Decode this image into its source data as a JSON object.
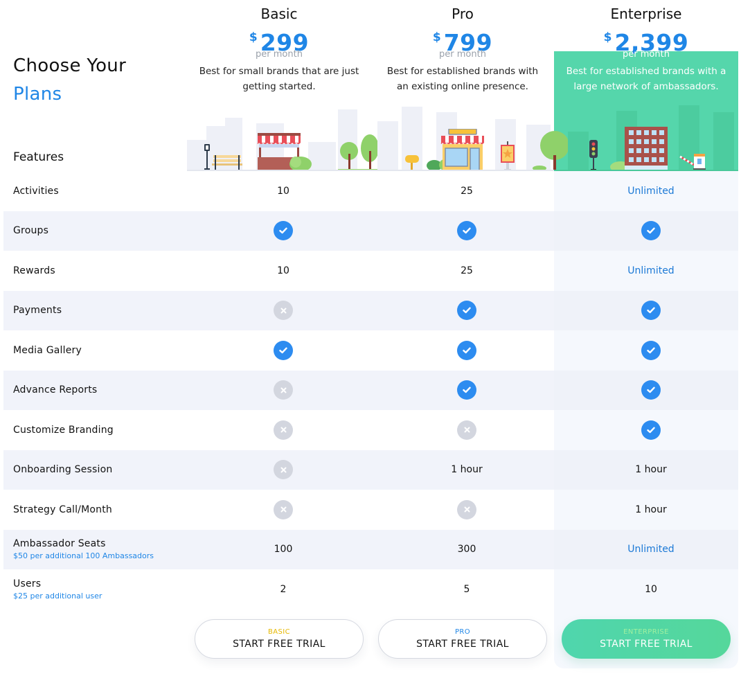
{
  "header": {
    "title_line1": "Choose Your",
    "title_line2": "Plans",
    "features_label": "Features"
  },
  "plans": [
    {
      "name": "Basic",
      "currency": "$",
      "price": "299",
      "period": "per month",
      "description": "Best for small brands that are just getting started.",
      "button_tier": "BASIC",
      "button_label": "START FREE TRIAL"
    },
    {
      "name": "Pro",
      "currency": "$",
      "price": "799",
      "period": "per month",
      "description": "Best for established brands with an existing online presence.",
      "button_tier": "PRO",
      "button_label": "START FREE TRIAL"
    },
    {
      "name": "Enterprise",
      "currency": "$",
      "price": "2,399",
      "period": "per month",
      "description": "Best for established brands with a large network of ambassadors.",
      "button_tier": "ENTERPRISE",
      "button_label": "START FREE TRIAL"
    }
  ],
  "features": [
    {
      "name": "Activities",
      "sub": "",
      "values": [
        "10",
        "25",
        "Unlimited"
      ]
    },
    {
      "name": "Groups",
      "sub": "",
      "values": [
        "check",
        "check",
        "check"
      ]
    },
    {
      "name": "Rewards",
      "sub": "",
      "values": [
        "10",
        "25",
        "Unlimited"
      ]
    },
    {
      "name": "Payments",
      "sub": "",
      "values": [
        "cross",
        "check",
        "check"
      ]
    },
    {
      "name": "Media Gallery",
      "sub": "",
      "values": [
        "check",
        "check",
        "check"
      ]
    },
    {
      "name": "Advance Reports",
      "sub": "",
      "values": [
        "cross",
        "check",
        "check"
      ]
    },
    {
      "name": "Customize Branding",
      "sub": "",
      "values": [
        "cross",
        "cross",
        "check"
      ]
    },
    {
      "name": "Onboarding Session",
      "sub": "",
      "values": [
        "cross",
        "1 hour",
        "1 hour"
      ]
    },
    {
      "name": "Strategy Call/Month",
      "sub": "",
      "values": [
        "cross",
        "cross",
        "1 hour"
      ]
    },
    {
      "name": "Ambassador Seats",
      "sub": "$50 per additional 100 Ambassadors",
      "values": [
        "100",
        "300",
        "Unlimited"
      ]
    },
    {
      "name": "Users",
      "sub": "$25 per additional user",
      "values": [
        "2",
        "5",
        "10"
      ]
    }
  ],
  "icons": {
    "check": "check-circle-icon",
    "cross": "x-circle-icon"
  },
  "colors": {
    "accent_blue": "#1f86e6",
    "check_blue": "#2d8cf0",
    "cross_gray": "#d3d6df",
    "enterprise_green": "#55d6ab",
    "basic_tier_yellow": "#e6b800",
    "row_shade": "#f1f3fa"
  }
}
